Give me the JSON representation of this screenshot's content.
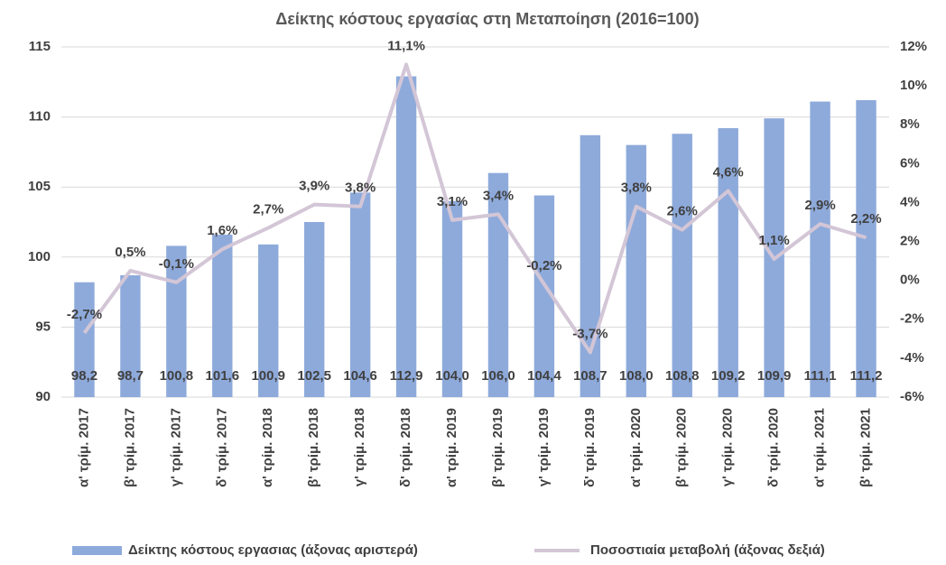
{
  "chart_data": {
    "type": "bar",
    "title": "Δείκτης κόστους εργασίας στη Μεταποίηση (2016=100)",
    "categories": [
      "α' τρίμ. 2017",
      "β' τρίμ. 2017",
      "γ' τρίμ. 2017",
      "δ' τρίμ. 2017",
      "α' τρίμ. 2018",
      "β' τρίμ. 2018",
      "γ' τρίμ. 2018",
      "δ' τρίμ. 2018",
      "α' τρίμ. 2019",
      "β' τρίμ. 2019",
      "γ' τρίμ. 2019",
      "δ' τρίμ. 2019",
      "α' τρίμ. 2020",
      "β' τρίμ. 2020",
      "γ' τρίμ. 2020",
      "δ' τρίμ. 2020",
      "α' τρίμ. 2021",
      "β' τρίμ. 2021"
    ],
    "series": [
      {
        "name": "Δείκτης κόστους εργασιας (άξονας αριστερά)",
        "type": "bar",
        "color": "#8eaadb",
        "values": [
          98.2,
          98.7,
          100.8,
          101.6,
          100.9,
          102.5,
          104.6,
          112.9,
          104.0,
          106.0,
          104.4,
          108.7,
          108.0,
          108.8,
          109.2,
          109.9,
          111.1,
          111.2
        ],
        "value_labels": [
          "98,2",
          "98,7",
          "100,8",
          "101,6",
          "100,9",
          "102,5",
          "104,6",
          "112,9",
          "104,0",
          "106,0",
          "104,4",
          "108,7",
          "108,0",
          "108,8",
          "109,2",
          "109,9",
          "111,1",
          "111,2"
        ]
      },
      {
        "name": "Ποσοστιαία μεταβολή (άξονας δεξιά)",
        "type": "line",
        "axis": "y2",
        "color": "#d3c6d6",
        "values": [
          -2.7,
          0.5,
          -0.1,
          1.6,
          2.7,
          3.9,
          3.8,
          11.1,
          3.1,
          3.4,
          -0.2,
          -3.7,
          3.8,
          2.6,
          4.6,
          1.1,
          2.9,
          2.2
        ],
        "value_labels": [
          "-2,7%",
          "0,5%",
          "-0,1%",
          "1,6%",
          "2,7%",
          "3,9%",
          "3,8%",
          "11,1%",
          "3,1%",
          "3,4%",
          "-0,2%",
          "-3,7%",
          "3,8%",
          "2,6%",
          "4,6%",
          "1,1%",
          "2,9%",
          "2,2%"
        ]
      }
    ],
    "ylim": [
      90,
      115
    ],
    "yticks": [
      90,
      95,
      100,
      105,
      110,
      115
    ],
    "y2lim": [
      -6,
      12
    ],
    "y2ticks": [
      {
        "value": -6,
        "label": "-6%"
      },
      {
        "value": -4,
        "label": "-4%"
      },
      {
        "value": -2,
        "label": "-2%"
      },
      {
        "value": 0,
        "label": "0%"
      },
      {
        "value": 2,
        "label": "2%"
      },
      {
        "value": 4,
        "label": "4%"
      },
      {
        "value": 6,
        "label": "6%"
      },
      {
        "value": 8,
        "label": "8%"
      },
      {
        "value": 10,
        "label": "10%"
      },
      {
        "value": 12,
        "label": "12%"
      }
    ],
    "grid": true,
    "legend": "bottom"
  }
}
